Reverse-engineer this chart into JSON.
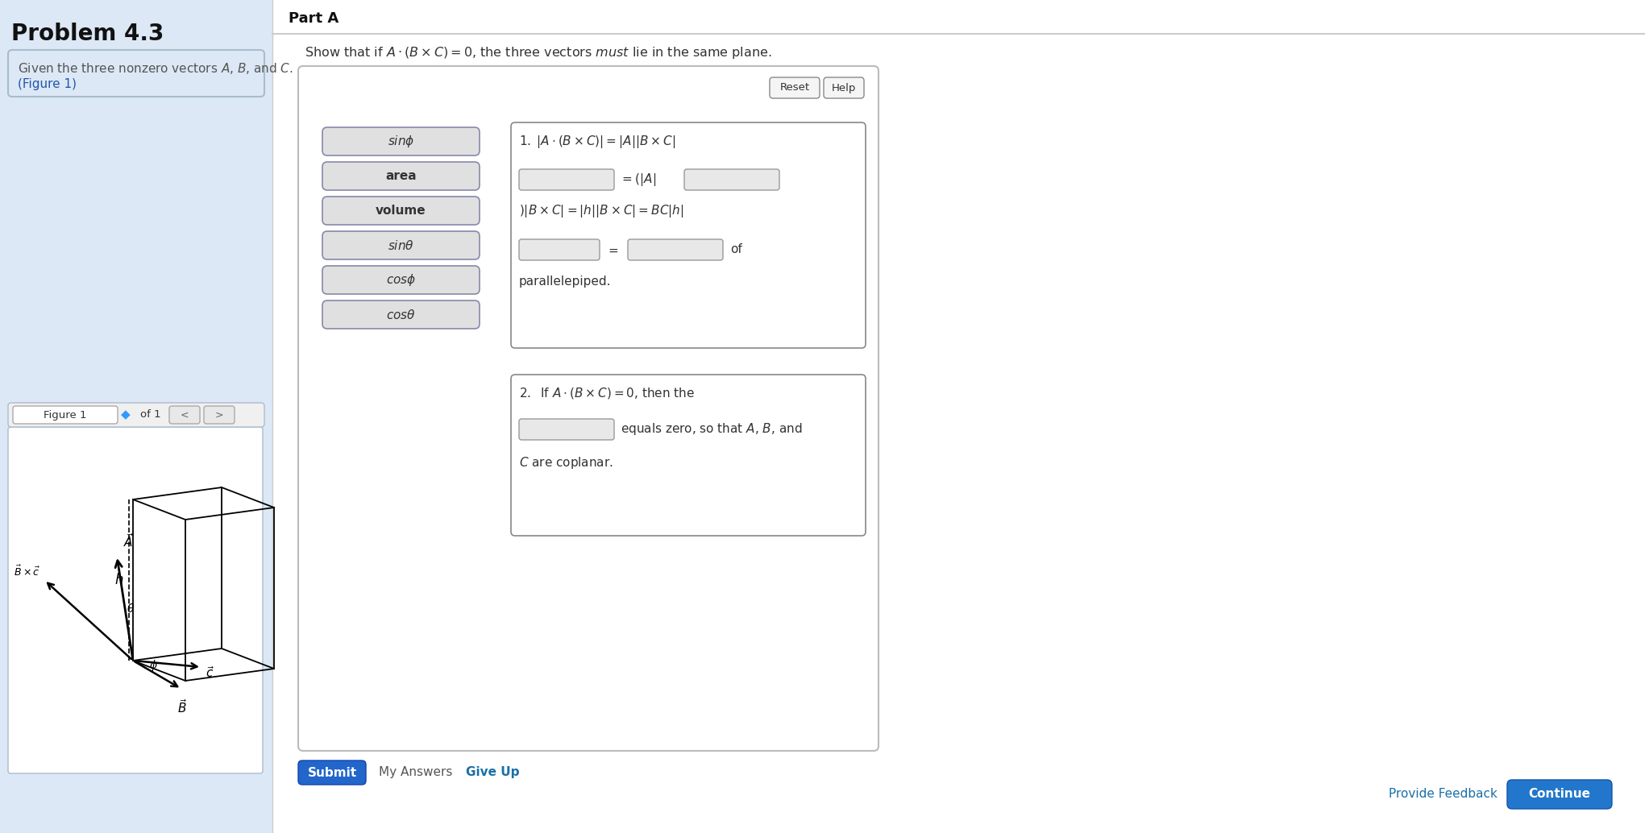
{
  "bg_left": "#dce8f5",
  "bg_white": "#ffffff",
  "problem_title": "Problem 4.3",
  "part_a": "Part A",
  "show_text": "Show that if $A \\cdot (B \\times C) = 0$, the three vectors $\\mathit{must}$ lie in the same plane.",
  "button_labels": [
    "$sin\\phi$",
    "area",
    "volume",
    "$sin\\theta$",
    "$cos\\phi$",
    "$cos\\theta$"
  ],
  "button_italic": [
    true,
    false,
    false,
    true,
    true,
    true
  ],
  "reset_label": "Reset",
  "help_label": "Help",
  "submit_label": "Submit",
  "my_answers_label": "My Answers",
  "give_up_label": "Give Up",
  "provide_feedback_label": "Provide Feedback",
  "continue_label": "Continue",
  "eq1_l1": "$1.\\;|A \\cdot (B \\times C)| = |A||B \\times C|$",
  "eq1_l2_pre": "$= (|A|$",
  "eq1_l3": "$)|B \\times C| = |h||B \\times C| = BC|h|$",
  "eq1_l4_pre": "$=$",
  "eq1_l4_post": "of",
  "eq1_l5": "parallelepiped.",
  "eq2_l1": "$2.\\;$If $A \\cdot (B \\times C) = 0$, then the",
  "eq2_l2_post": "equals zero, so that $A$, $B$, and",
  "eq2_l3": "$C$ are coplanar.",
  "divider_color": "#cccccc",
  "border_color": "#b0bec8",
  "btn_border": "#8888aa",
  "input_bg": "#e8e8e8",
  "button_bg": "#e0e0e0"
}
